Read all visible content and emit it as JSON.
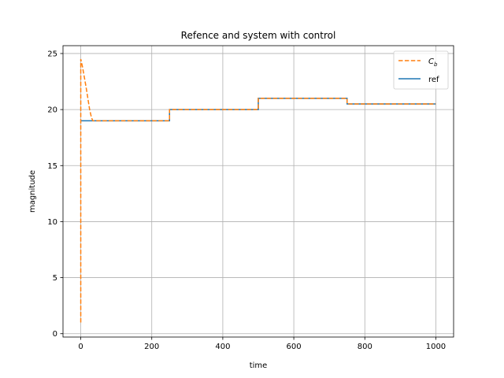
{
  "chart_data": {
    "type": "line",
    "title": "Refence and system with control",
    "xlabel": "time",
    "ylabel": "magnitude",
    "xlim": [
      -50,
      1050
    ],
    "ylim": [
      -0.3,
      25.7
    ],
    "xticks": [
      0,
      200,
      400,
      600,
      800,
      1000
    ],
    "yticks": [
      0,
      5,
      10,
      15,
      20,
      25
    ],
    "grid": true,
    "legend_position": "top-right",
    "series": [
      {
        "name": "C_b",
        "legend_label": "C",
        "legend_subscript": "b",
        "color": "#ff7f0e",
        "style": "dashed",
        "x": [
          0,
          0,
          5,
          10,
          15,
          20,
          25,
          30,
          34,
          250,
          250,
          500,
          500,
          750,
          750,
          1000
        ],
        "y": [
          1.0,
          24.5,
          23.8,
          22.9,
          22.0,
          21.0,
          20.0,
          19.3,
          19.0,
          19.0,
          20.0,
          20.0,
          21.0,
          21.0,
          20.5,
          20.5
        ]
      },
      {
        "name": "ref",
        "legend_label": "ref",
        "color": "#1f77b4",
        "style": "solid",
        "x": [
          0,
          250,
          250,
          500,
          500,
          750,
          750,
          1000
        ],
        "y": [
          19.0,
          19.0,
          20.0,
          20.0,
          21.0,
          21.0,
          20.5,
          20.5
        ]
      }
    ]
  }
}
